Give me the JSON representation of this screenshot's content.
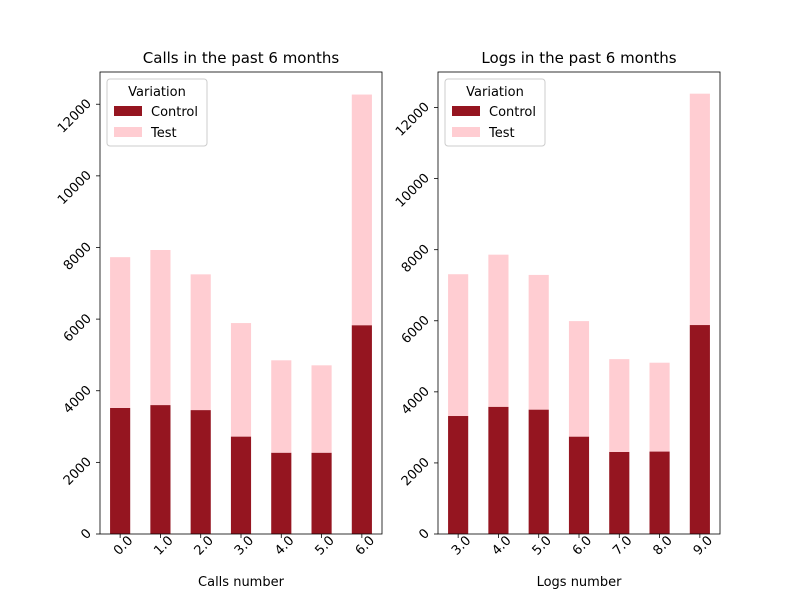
{
  "chart_data": [
    {
      "type": "bar",
      "stacked": true,
      "title": "Calls in the past 6 months",
      "xlabel": "Calls number",
      "ylabel": "",
      "categories": [
        "0.0",
        "1.0",
        "2.0",
        "3.0",
        "4.0",
        "5.0",
        "6.0"
      ],
      "series": [
        {
          "name": "Control",
          "values": [
            3520,
            3600,
            3460,
            2720,
            2270,
            2270,
            5830
          ],
          "color": "#951520"
        },
        {
          "name": "Test",
          "values": [
            4210,
            4330,
            3790,
            3170,
            2580,
            2440,
            6440
          ],
          "color": "#ffcdd2"
        }
      ],
      "ylim": [
        0,
        12900
      ],
      "yticks": [
        "0",
        "2000",
        "4000",
        "6000",
        "8000",
        "10000",
        "12000"
      ],
      "legend": {
        "title": "Variation",
        "placement": "top-left"
      },
      "grid": false
    },
    {
      "type": "bar",
      "stacked": true,
      "title": "Logs in the past 6 months",
      "xlabel": "Logs number",
      "ylabel": "",
      "categories": [
        "3.0",
        "4.0",
        "5.0",
        "6.0",
        "7.0",
        "8.0",
        "9.0"
      ],
      "series": [
        {
          "name": "Control",
          "values": [
            3320,
            3580,
            3500,
            2740,
            2310,
            2320,
            5880
          ],
          "color": "#951520"
        },
        {
          "name": "Test",
          "values": [
            3990,
            4280,
            3790,
            3250,
            2610,
            2500,
            6510
          ],
          "color": "#ffcdd2"
        }
      ],
      "ylim": [
        0,
        13000
      ],
      "yticks": [
        "0",
        "2000",
        "4000",
        "6000",
        "8000",
        "10000",
        "12000"
      ],
      "legend": {
        "title": "Variation",
        "placement": "top-left"
      },
      "grid": false
    }
  ]
}
